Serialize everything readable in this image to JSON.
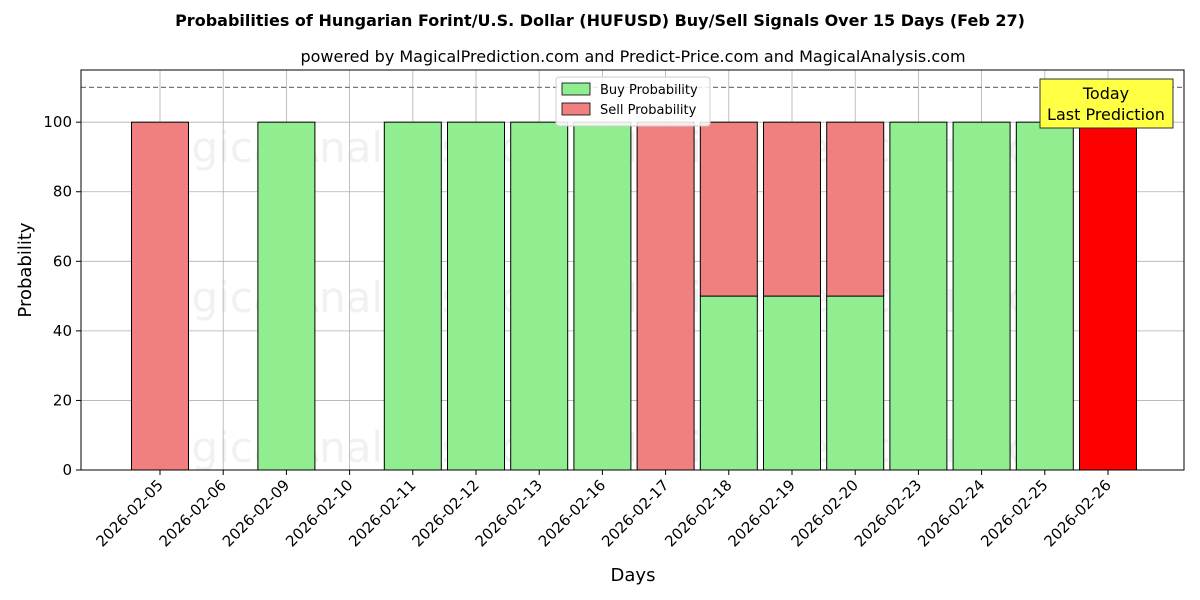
{
  "chart_data": {
    "type": "bar",
    "stacked": true,
    "title": "Probabilities of Hungarian Forint/U.S. Dollar (HUFUSD) Buy/Sell Signals Over 15 Days (Feb 27)",
    "subtitle": "powered by MagicalPrediction.com and Predict-Price.com and MagicalAnalysis.com",
    "xlabel": "Days",
    "ylabel": "Probability",
    "ylim": [
      0,
      115
    ],
    "yticks": [
      0,
      20,
      40,
      60,
      80,
      100
    ],
    "threshold_line": 110,
    "grid": true,
    "legend_placement": "top-center",
    "categories": [
      "2026-02-05",
      "2026-02-06",
      "2026-02-09",
      "2026-02-10",
      "2026-02-11",
      "2026-02-12",
      "2026-02-13",
      "2026-02-16",
      "2026-02-17",
      "2026-02-18",
      "2026-02-19",
      "2026-02-20",
      "2026-02-23",
      "2026-02-24",
      "2026-02-25",
      "2026-02-26"
    ],
    "series": [
      {
        "name": "Buy Probability",
        "color": "#90ee90",
        "values": [
          0,
          0,
          100,
          0,
          100,
          100,
          100,
          100,
          0,
          50,
          50,
          50,
          100,
          100,
          100,
          0
        ]
      },
      {
        "name": "Sell Probability",
        "color": "#f08080",
        "values": [
          100,
          0,
          0,
          0,
          0,
          0,
          0,
          0,
          100,
          50,
          50,
          50,
          0,
          0,
          0,
          100
        ]
      }
    ],
    "highlight": {
      "index": 15,
      "color": "#ff0000"
    },
    "annotation": {
      "lines": [
        "Today",
        "Last Prediction"
      ],
      "box_color": "#ffff44"
    },
    "watermarks": [
      "MagicalAnalysis.com",
      "MagicalPrediction.com"
    ]
  }
}
